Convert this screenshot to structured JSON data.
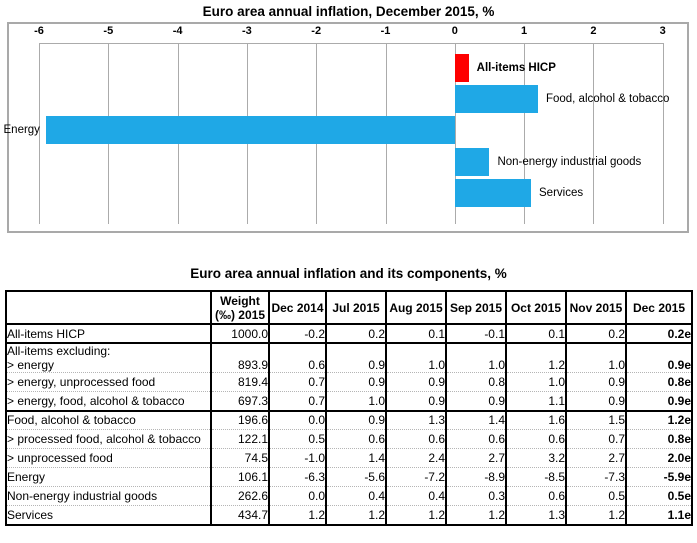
{
  "page": {
    "chart_title": "Euro area annual inflation, December 2015, %",
    "table_title": "Euro area annual inflation and its components, %"
  },
  "colors": {
    "bar_blue": "#1fa8e6",
    "bar_red": "#fe0000",
    "grid_gray": "#ababab"
  },
  "chart_data": [
    {
      "type": "bar",
      "orientation": "horizontal",
      "title": "Euro area annual inflation, December 2015, %",
      "categories": [
        "All-items HICP",
        "Food, alcohol & tobacco",
        "Energy",
        "Non-energy industrial goods",
        "Services"
      ],
      "values": [
        0.2,
        1.2,
        -5.9,
        0.5,
        1.1
      ],
      "highlight_category": "All-items HICP",
      "xlim": [
        -6,
        3
      ],
      "x_ticks": [
        -6,
        -5,
        -4,
        -3,
        -2,
        -1,
        0,
        1,
        2,
        3
      ],
      "axis_position": "top",
      "grid": true,
      "legend": "none"
    },
    {
      "type": "table",
      "title": "Euro area annual inflation and its components, %",
      "columns": [
        "",
        "Weight|(‰) 2015",
        "Dec 2014",
        "Jul 2015",
        "Aug 2015",
        "Sep 2015",
        "Oct 2015",
        "Nov 2015",
        "Dec 2015"
      ],
      "rows": [
        {
          "label": "All-items HICP",
          "values": [
            "1000.0",
            "-0.2",
            "0.2",
            "0.1",
            "-0.1",
            "0.1",
            "0.2",
            "0.2e"
          ],
          "sep": "none",
          "kind": "first"
        },
        {
          "label": "All-items excluding:|> energy",
          "values": [
            "893.9",
            "0.6",
            "0.9",
            "1.0",
            "1.0",
            "1.2",
            "1.0",
            "0.9e"
          ],
          "sep": "solid",
          "kind": "group"
        },
        {
          "label": "> energy, unprocessed food",
          "values": [
            "819.4",
            "0.7",
            "0.9",
            "0.9",
            "0.8",
            "1.0",
            "0.9",
            "0.8e"
          ],
          "sep": "dotted",
          "kind": "normal"
        },
        {
          "label": "> energy, food, alcohol & tobacco",
          "values": [
            "697.3",
            "0.7",
            "1.0",
            "0.9",
            "0.9",
            "1.1",
            "0.9",
            "0.9e"
          ],
          "sep": "dotted",
          "kind": "normal"
        },
        {
          "label": "Food, alcohol & tobacco",
          "values": [
            "196.6",
            "0.0",
            "0.9",
            "1.3",
            "1.4",
            "1.6",
            "1.5",
            "1.2e"
          ],
          "sep": "solid",
          "kind": "normal"
        },
        {
          "label": "> processed food, alcohol & tobacco",
          "values": [
            "122.1",
            "0.5",
            "0.6",
            "0.6",
            "0.6",
            "0.6",
            "0.7",
            "0.8e"
          ],
          "sep": "dotted",
          "kind": "normal"
        },
        {
          "label": "> unprocessed food",
          "values": [
            "74.5",
            "-1.0",
            "1.4",
            "2.4",
            "2.7",
            "3.2",
            "2.7",
            "2.0e"
          ],
          "sep": "dotted",
          "kind": "normal"
        },
        {
          "label": "Energy",
          "values": [
            "106.1",
            "-6.3",
            "-5.6",
            "-7.2",
            "-8.9",
            "-8.5",
            "-7.3",
            "-5.9e"
          ],
          "sep": "dotted",
          "kind": "normal"
        },
        {
          "label": "Non-energy industrial goods",
          "values": [
            "262.6",
            "0.0",
            "0.4",
            "0.4",
            "0.3",
            "0.6",
            "0.5",
            "0.5e"
          ],
          "sep": "dotted",
          "kind": "normal"
        },
        {
          "label": "Services",
          "values": [
            "434.7",
            "1.2",
            "1.2",
            "1.2",
            "1.2",
            "1.3",
            "1.2",
            "1.1e"
          ],
          "sep": "dotted",
          "kind": "normal"
        }
      ]
    }
  ]
}
